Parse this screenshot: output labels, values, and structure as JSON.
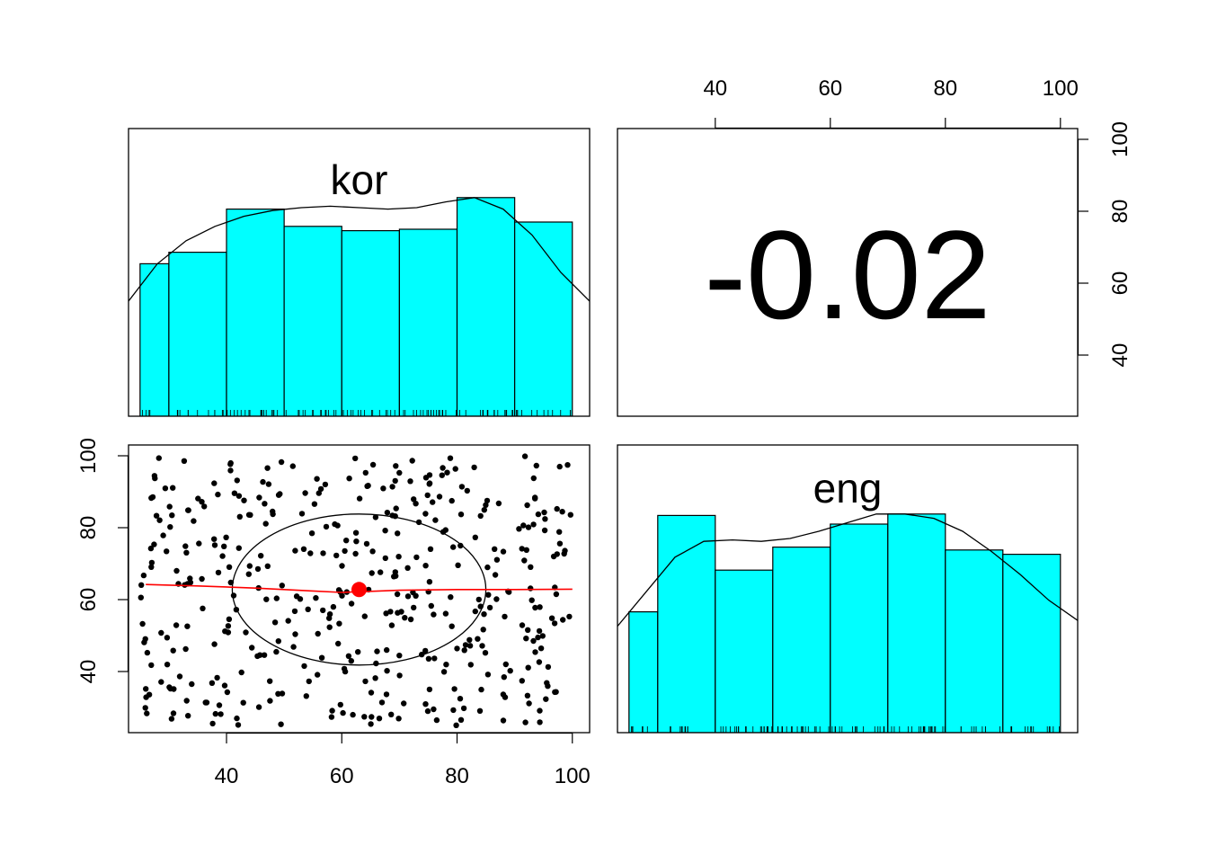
{
  "chart_data": {
    "type": "pairs",
    "variables": [
      "kor",
      "eng"
    ],
    "axis_ticks": [
      40,
      60,
      80,
      100
    ],
    "axis_range": [
      23,
      103
    ],
    "colors": {
      "hist_fill": "#00ffff",
      "stroke": "#000000",
      "smooth": "#ff0000",
      "points": "#000000"
    },
    "panels": [
      {
        "id": "kor-diag",
        "kind": "histogram",
        "label": "kor",
        "bin_edges": [
          25,
          30,
          40,
          50,
          60,
          70,
          80,
          90,
          100
        ],
        "counts": [
          0.53,
          0.57,
          0.72,
          0.66,
          0.645,
          0.65,
          0.76,
          0.675
        ],
        "density_curve": {
          "x": [
            23,
            28,
            33,
            38,
            43,
            48,
            53,
            58,
            63,
            68,
            73,
            78,
            83,
            88,
            93,
            98,
            103
          ],
          "y": [
            0.4,
            0.53,
            0.61,
            0.66,
            0.695,
            0.715,
            0.725,
            0.73,
            0.725,
            0.72,
            0.725,
            0.745,
            0.76,
            0.72,
            0.63,
            0.5,
            0.4
          ]
        }
      },
      {
        "id": "corr",
        "kind": "correlation",
        "value": "-0.02"
      },
      {
        "id": "scatter",
        "kind": "scatter",
        "x_var": "kor",
        "y_var": "eng",
        "n_points": 420,
        "mean": [
          63,
          62.8
        ],
        "ellipse": {
          "rx": 22,
          "ry": 21
        },
        "loess": {
          "x": [
            26,
            35,
            45,
            55,
            60,
            65,
            70,
            80,
            90,
            100
          ],
          "y": [
            64.2,
            63.8,
            63.2,
            62.4,
            62.0,
            62.3,
            62.6,
            62.8,
            62.8,
            62.9
          ]
        }
      },
      {
        "id": "eng-diag",
        "kind": "histogram",
        "label": "eng",
        "bin_edges": [
          25,
          30,
          40,
          50,
          60,
          70,
          80,
          90,
          100
        ],
        "counts": [
          0.42,
          0.755,
          0.565,
          0.645,
          0.725,
          0.76,
          0.635,
          0.62
        ],
        "density_curve": {
          "x": [
            23,
            28,
            33,
            38,
            43,
            48,
            53,
            58,
            63,
            68,
            73,
            78,
            83,
            88,
            93,
            98,
            103
          ],
          "y": [
            0.37,
            0.49,
            0.61,
            0.665,
            0.67,
            0.665,
            0.675,
            0.7,
            0.73,
            0.76,
            0.76,
            0.745,
            0.7,
            0.63,
            0.55,
            0.46,
            0.39
          ]
        }
      }
    ]
  }
}
